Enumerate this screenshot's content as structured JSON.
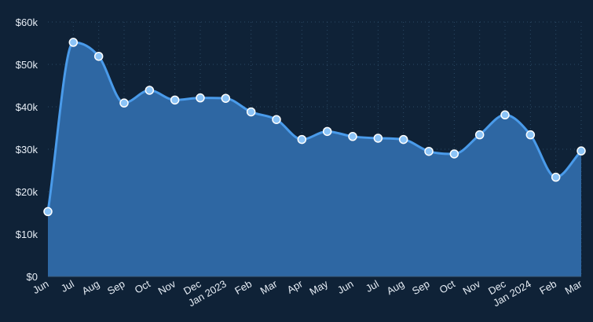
{
  "chart_data": {
    "type": "area",
    "categories": [
      "Jun",
      "Jul",
      "Aug",
      "Sep",
      "Oct",
      "Nov",
      "Dec",
      "Jan 2023",
      "Feb",
      "Mar",
      "Apr",
      "May",
      "Jun",
      "Jul",
      "Aug",
      "Sep",
      "Oct",
      "Nov",
      "Dec",
      "Jan 2024",
      "Feb",
      "Mar"
    ],
    "values": [
      15300,
      55200,
      51900,
      40900,
      43900,
      41600,
      42100,
      42000,
      38800,
      37000,
      32300,
      34200,
      33000,
      32600,
      32300,
      29500,
      28900,
      33400,
      38100,
      33400,
      23400,
      29600
    ],
    "ylim": [
      0,
      60000
    ],
    "yticks": [
      0,
      10000,
      20000,
      30000,
      40000,
      50000,
      60000
    ],
    "ytick_labels": [
      "$0",
      "$10k",
      "$20k",
      "$30k",
      "$40k",
      "$50k",
      "$60k"
    ],
    "grid": true,
    "colors": {
      "background": "#0f2237",
      "area_fill": "#2e67a3",
      "line": "#4a9bea",
      "marker_fill": "#8cc4f7",
      "marker_stroke": "#ffffff"
    }
  }
}
